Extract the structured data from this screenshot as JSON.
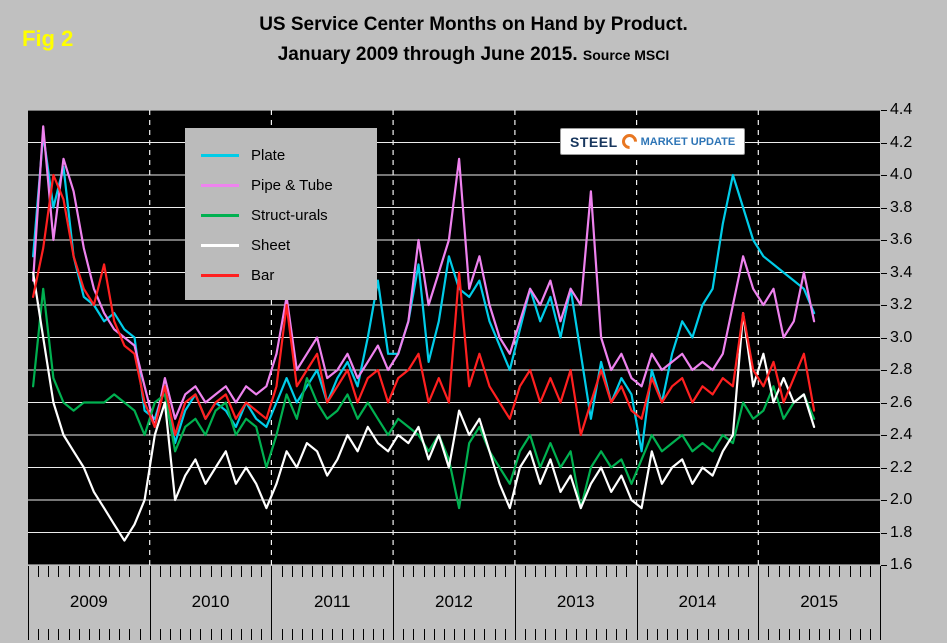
{
  "figure_label": "Fig 2",
  "title_line1": "US Service Center Months on Hand by Product.",
  "title_line2": "January 2009 through June 2015.",
  "title_source": "Source MSCI",
  "logo": {
    "steel": "STEEL",
    "market": "MARKET",
    "update": "UPDATE"
  },
  "colors": {
    "page_background": "#C0C0C0",
    "plot_background": "#000000",
    "gridline": "#ECECEC",
    "figure_label": "#FFFF00",
    "plate": "#00CCE8",
    "pipe_tube": "#EE82EE",
    "structurals": "#00B050",
    "sheet": "#FFFFFF",
    "bar": "#FF2020"
  },
  "chart_data": {
    "type": "line",
    "title": "US Service Center Months on Hand by Product. January 2009 through June 2015.",
    "xlabel": "",
    "ylabel": "",
    "ylim": [
      1.6,
      4.4
    ],
    "ytick_step": 0.2,
    "grid": true,
    "legend_position": "upper-left-inside",
    "x_year_labels": [
      "2009",
      "2010",
      "2011",
      "2012",
      "2013",
      "2014",
      "2015"
    ],
    "x": [
      "2009-01",
      "2009-02",
      "2009-03",
      "2009-04",
      "2009-05",
      "2009-06",
      "2009-07",
      "2009-08",
      "2009-09",
      "2009-10",
      "2009-11",
      "2009-12",
      "2010-01",
      "2010-02",
      "2010-03",
      "2010-04",
      "2010-05",
      "2010-06",
      "2010-07",
      "2010-08",
      "2010-09",
      "2010-10",
      "2010-11",
      "2010-12",
      "2011-01",
      "2011-02",
      "2011-03",
      "2011-04",
      "2011-05",
      "2011-06",
      "2011-07",
      "2011-08",
      "2011-09",
      "2011-10",
      "2011-11",
      "2011-12",
      "2012-01",
      "2012-02",
      "2012-03",
      "2012-04",
      "2012-05",
      "2012-06",
      "2012-07",
      "2012-08",
      "2012-09",
      "2012-10",
      "2012-11",
      "2012-12",
      "2013-01",
      "2013-02",
      "2013-03",
      "2013-04",
      "2013-05",
      "2013-06",
      "2013-07",
      "2013-08",
      "2013-09",
      "2013-10",
      "2013-11",
      "2013-12",
      "2014-01",
      "2014-02",
      "2014-03",
      "2014-04",
      "2014-05",
      "2014-06",
      "2014-07",
      "2014-08",
      "2014-09",
      "2014-10",
      "2014-11",
      "2014-12",
      "2015-01",
      "2015-02",
      "2015-03",
      "2015-04",
      "2015-05",
      "2015-06"
    ],
    "series": [
      {
        "name": "Plate",
        "color": "#00CCE8",
        "values": [
          3.5,
          4.25,
          3.8,
          4.05,
          3.5,
          3.25,
          3.2,
          3.1,
          3.15,
          3.05,
          3.0,
          2.55,
          2.5,
          2.7,
          2.35,
          2.55,
          2.65,
          2.5,
          2.6,
          2.55,
          2.45,
          2.6,
          2.5,
          2.45,
          2.6,
          2.75,
          2.6,
          2.7,
          2.8,
          2.6,
          2.75,
          2.85,
          2.7,
          3.0,
          3.35,
          2.9,
          2.9,
          3.1,
          3.45,
          2.85,
          3.1,
          3.5,
          3.3,
          3.25,
          3.35,
          3.1,
          2.95,
          2.8,
          3.05,
          3.3,
          3.1,
          3.25,
          3.0,
          3.3,
          2.9,
          2.5,
          2.85,
          2.6,
          2.75,
          2.65,
          2.3,
          2.8,
          2.6,
          2.9,
          3.1,
          3.0,
          3.2,
          3.3,
          3.7,
          4.0,
          3.8,
          3.6,
          3.5,
          3.45,
          3.4,
          3.35,
          3.3,
          3.15
        ]
      },
      {
        "name": "Pipe & Tube",
        "color": "#EE82EE",
        "values": [
          3.35,
          4.3,
          3.6,
          4.1,
          3.9,
          3.55,
          3.3,
          3.15,
          3.05,
          3.0,
          2.95,
          2.7,
          2.45,
          2.75,
          2.5,
          2.65,
          2.7,
          2.6,
          2.65,
          2.7,
          2.6,
          2.7,
          2.65,
          2.7,
          2.9,
          3.25,
          2.8,
          2.9,
          3.0,
          2.75,
          2.8,
          2.9,
          2.75,
          2.85,
          2.95,
          2.8,
          2.9,
          3.1,
          3.6,
          3.2,
          3.4,
          3.6,
          4.1,
          3.3,
          3.5,
          3.2,
          3.0,
          2.9,
          3.1,
          3.3,
          3.2,
          3.35,
          3.1,
          3.3,
          3.2,
          3.9,
          3.0,
          2.8,
          2.9,
          2.75,
          2.7,
          2.9,
          2.8,
          2.85,
          2.9,
          2.8,
          2.85,
          2.8,
          2.9,
          3.2,
          3.5,
          3.3,
          3.2,
          3.3,
          3.0,
          3.1,
          3.4,
          3.1
        ]
      },
      {
        "name": "Struct-urals",
        "color": "#00B050",
        "values": [
          2.7,
          3.3,
          2.75,
          2.6,
          2.55,
          2.6,
          2.6,
          2.6,
          2.65,
          2.6,
          2.55,
          2.4,
          2.6,
          2.65,
          2.3,
          2.45,
          2.5,
          2.4,
          2.55,
          2.6,
          2.4,
          2.5,
          2.45,
          2.2,
          2.4,
          2.65,
          2.5,
          2.75,
          2.6,
          2.5,
          2.55,
          2.65,
          2.5,
          2.6,
          2.5,
          2.4,
          2.5,
          2.45,
          2.4,
          2.3,
          2.4,
          2.25,
          1.95,
          2.35,
          2.45,
          2.3,
          2.2,
          2.1,
          2.3,
          2.4,
          2.2,
          2.35,
          2.2,
          2.3,
          1.95,
          2.2,
          2.3,
          2.2,
          2.25,
          2.1,
          2.25,
          2.4,
          2.3,
          2.35,
          2.4,
          2.3,
          2.35,
          2.3,
          2.4,
          2.35,
          2.6,
          2.5,
          2.55,
          2.7,
          2.5,
          2.6,
          2.65,
          2.5
        ]
      },
      {
        "name": "Sheet",
        "color": "#FFFFFF",
        "values": [
          3.4,
          3.0,
          2.6,
          2.4,
          2.3,
          2.2,
          2.05,
          1.95,
          1.85,
          1.75,
          1.85,
          2.0,
          2.4,
          2.6,
          2.0,
          2.15,
          2.25,
          2.1,
          2.2,
          2.3,
          2.1,
          2.2,
          2.1,
          1.95,
          2.1,
          2.3,
          2.2,
          2.35,
          2.3,
          2.15,
          2.25,
          2.4,
          2.3,
          2.45,
          2.35,
          2.3,
          2.4,
          2.35,
          2.45,
          2.25,
          2.4,
          2.2,
          2.55,
          2.4,
          2.5,
          2.3,
          2.1,
          1.95,
          2.2,
          2.3,
          2.1,
          2.25,
          2.05,
          2.15,
          1.95,
          2.1,
          2.2,
          2.05,
          2.15,
          2.0,
          1.95,
          2.3,
          2.1,
          2.2,
          2.25,
          2.1,
          2.2,
          2.15,
          2.3,
          2.4,
          3.15,
          2.7,
          2.9,
          2.6,
          2.75,
          2.6,
          2.65,
          2.45
        ]
      },
      {
        "name": "Bar",
        "color": "#FF2020",
        "values": [
          3.25,
          3.55,
          4.0,
          3.85,
          3.5,
          3.3,
          3.2,
          3.45,
          3.1,
          2.95,
          2.9,
          2.6,
          2.45,
          2.7,
          2.4,
          2.6,
          2.65,
          2.5,
          2.6,
          2.65,
          2.5,
          2.6,
          2.55,
          2.5,
          2.7,
          3.2,
          2.7,
          2.8,
          2.9,
          2.6,
          2.7,
          2.8,
          2.6,
          2.75,
          2.8,
          2.6,
          2.75,
          2.8,
          2.9,
          2.6,
          2.75,
          2.6,
          3.4,
          2.7,
          2.9,
          2.7,
          2.6,
          2.5,
          2.7,
          2.8,
          2.6,
          2.75,
          2.6,
          2.8,
          2.4,
          2.6,
          2.8,
          2.6,
          2.7,
          2.55,
          2.5,
          2.75,
          2.6,
          2.7,
          2.75,
          2.6,
          2.7,
          2.65,
          2.75,
          2.7,
          3.15,
          2.8,
          2.7,
          2.85,
          2.6,
          2.75,
          2.9,
          2.55
        ]
      }
    ]
  }
}
